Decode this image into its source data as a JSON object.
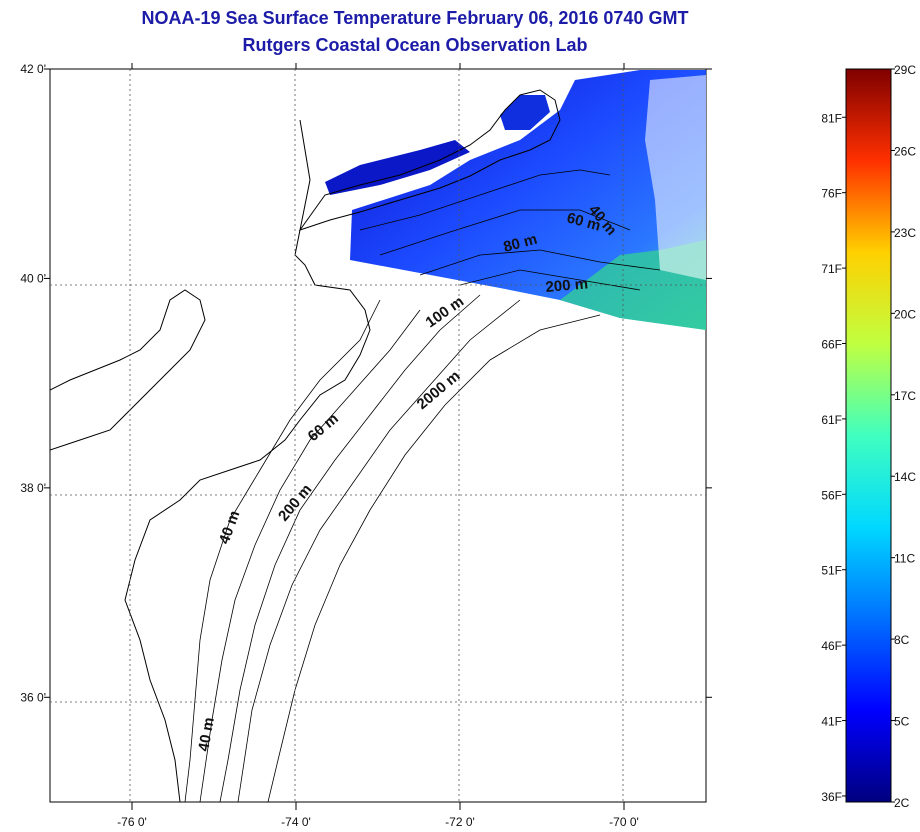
{
  "title": {
    "line1": "NOAA-19 Sea Surface Temperature February 06, 2016 0740 GMT",
    "line2": "Rutgers Coastal Ocean Observation Lab"
  },
  "map": {
    "lon_ticks": [
      {
        "value": -76,
        "label": "-76 0'"
      },
      {
        "value": -74,
        "label": "-74 0'"
      },
      {
        "value": -72,
        "label": "-72 0'"
      },
      {
        "value": -70,
        "label": "-70 0'"
      }
    ],
    "lat_ticks": [
      {
        "value": 42,
        "label": "42 0'"
      },
      {
        "value": 40,
        "label": "40 0'"
      },
      {
        "value": 38,
        "label": "38 0'"
      },
      {
        "value": 36,
        "label": "36 0'"
      }
    ],
    "lon_range": [
      -77,
      -69
    ],
    "lat_range": [
      35,
      42
    ],
    "contour_labels": [
      "40 m",
      "60 m",
      "80 m",
      "200 m",
      "100 m",
      "2000 m",
      "60 m",
      "40 m",
      "200 m",
      "40 m"
    ]
  },
  "colorbar": {
    "celsius_labels": [
      "29C",
      "26C",
      "23C",
      "20C",
      "17C",
      "14C",
      "11C",
      "8C",
      "5C",
      "2C"
    ],
    "fahrenheit_labels": [
      "81F",
      "76F",
      "71F",
      "66F",
      "61F",
      "56F",
      "51F",
      "46F",
      "41F",
      "36F"
    ],
    "celsius_range": [
      2,
      29
    ],
    "colors": [
      "#00007f",
      "#0000ff",
      "#007fff",
      "#00ffff",
      "#7fff7f",
      "#ffff00",
      "#ff7f00",
      "#ff0000",
      "#7f0000"
    ]
  }
}
